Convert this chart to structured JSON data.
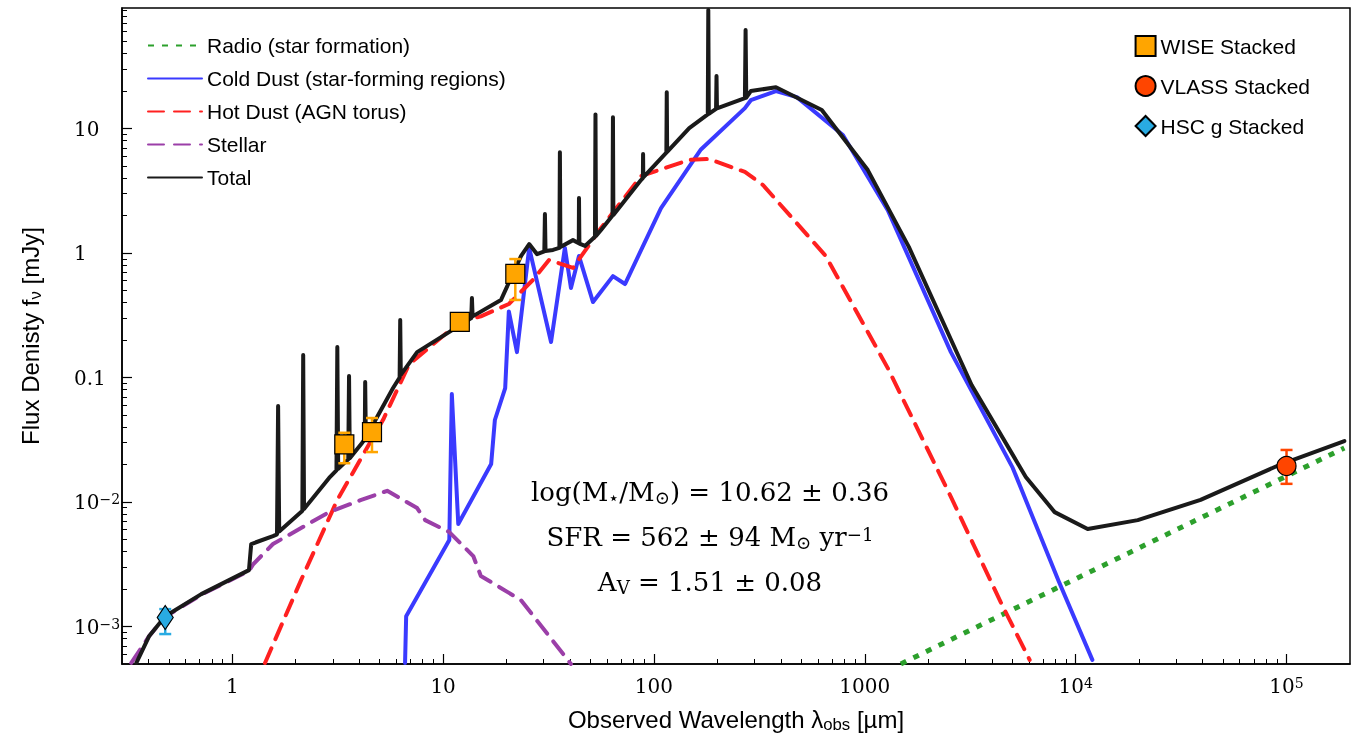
{
  "chart_data": {
    "type": "line",
    "xlabel": "Observed Wavelength λ$_{obs}$ [µm]",
    "ylabel": "Flux Denisty f$_{ν}$ [mJy]",
    "log": "xy",
    "xlim": [
      0.3,
      200000
    ],
    "ylim": [
      0.0005,
      93
    ],
    "xticks": [
      1,
      10,
      100,
      1000,
      {
        "value": 10000,
        "label": "10$^{4}$"
      },
      {
        "value": 100000,
        "label": "10$^{5}$"
      }
    ],
    "yticks": [
      {
        "value": 0.001,
        "label": "10$^{−3}$"
      },
      {
        "value": 0.01,
        "label": "10$^{−2}$"
      },
      0.1,
      1,
      10
    ],
    "grid": false,
    "legend": "top",
    "annotations": [
      "log(M$_{⋆}$/M$_{⊙}$) = 10.62 ± 0.36",
      "SFR = 562 ± 94 M$_{⊙}$ yr$^{−1}$",
      "A$_{V}$ = 1.51 ± 0.08"
    ],
    "series": [
      {
        "type": "line",
        "name": "Radio (star formation)",
        "color": "#2ca02c",
        "line_style": "dotted",
        "marker": "none",
        "x": [
          1482,
          188000
        ],
        "values": [
          0.0005,
          0.0272
        ]
      },
      {
        "type": "line",
        "name": "Cold Dust (star-forming regions)",
        "color": "#3a3aff",
        "line_style": "solid",
        "marker": "none",
        "x": [
          6.6,
          6.68,
          10.7,
          11.0,
          11.8,
          16.9,
          17.6,
          19.7,
          20.5,
          22.4,
          25.6,
          32.5,
          37.8,
          40.4,
          44.1,
          51.4,
          63.9,
          72.9,
          108,
          167,
          270,
          288,
          379,
          476,
          787,
          1285,
          2560,
          5030,
          8300,
          12000
        ],
        "values": [
          0.00051,
          0.00121,
          0.00495,
          0.0737,
          0.00666,
          0.0202,
          0.0456,
          0.0824,
          0.34,
          0.16,
          1.1,
          0.193,
          1.1,
          0.524,
          0.946,
          0.404,
          0.653,
          0.564,
          2.3,
          6.8,
          14.6,
          16.9,
          20.0,
          17.9,
          8.87,
          2.21,
          0.16,
          0.0188,
          0.00232,
          0.00054
        ]
      },
      {
        "type": "line",
        "name": "Hot Dust (AGN torus)",
        "color": "#ff2020",
        "line_style": "dashed",
        "marker": "none",
        "x": [
          1.43,
          2.12,
          3.15,
          5.2,
          6.9,
          12,
          15.1,
          20.5,
          26.7,
          31.8,
          41.3,
          56.1,
          86.8,
          147,
          182,
          270,
          329,
          653,
          1285,
          2560,
          4410,
          6050
        ],
        "values": [
          0.00051,
          0.00236,
          0.0104,
          0.046,
          0.128,
          0.28,
          0.31,
          0.39,
          0.61,
          0.88,
          0.76,
          1.59,
          4.15,
          5.6,
          5.7,
          4.48,
          3.52,
          0.946,
          0.119,
          0.011,
          0.00157,
          0.00054
        ]
      },
      {
        "type": "line",
        "name": "Stellar",
        "color": "#9b3fa8",
        "line_style": "dashed",
        "marker": "none",
        "x": [
          0.332,
          0.404,
          0.481,
          0.713,
          1.2,
          1.26,
          1.56,
          2.12,
          2.88,
          4.09,
          5.43,
          7.53,
          8.22,
          10.7,
          13.9,
          15.1,
          23.4,
          40.4
        ],
        "values": [
          0.00051,
          0.00084,
          0.0012,
          0.0018,
          0.0028,
          0.00318,
          0.0046,
          0.00618,
          0.0083,
          0.0104,
          0.0123,
          0.00895,
          0.00716,
          0.00574,
          0.00368,
          0.00255,
          0.00163,
          0.0005
        ]
      },
      {
        "type": "line",
        "name": "Total",
        "color": "#1a1a1a",
        "line_style": "solid",
        "marker": "none",
        "x": [
          0.351,
          0.404,
          0.481,
          0.713,
          1.2,
          1.23,
          1.56,
          1.63,
          1.65,
          1.67,
          2.12,
          2.15,
          2.17,
          2.19,
          2.88,
          3.12,
          3.15,
          3.18,
          3.55,
          3.58,
          3.61,
          4.09,
          4.25,
          4.27,
          4.3,
          5.79,
          6.22,
          6.26,
          6.3,
          7.53,
          12.7,
          13.6,
          13.7,
          13.8,
          18.8,
          23.4,
          25.6,
          27.9,
          30.2,
          30.4,
          30.6,
          33.2,
          35.6,
          35.8,
          36,
          41.3,
          44,
          44.1,
          44.3,
          47.1,
          52.5,
          52.8,
          53.1,
          56.1,
          63.6,
          63.9,
          64.2,
          86.8,
          88.6,
          88.8,
          89,
          114.5,
          115,
          115.5,
          147,
          180,
          181,
          182,
          197,
          198,
          199,
          270,
          272,
          274,
          288,
          379,
          625,
          1033,
          1617,
          3210,
          5800,
          7950,
          11400,
          19700,
          39100,
          94700,
          188000
        ],
        "values": [
          0.00051,
          0.00084,
          0.00121,
          0.00182,
          0.00284,
          0.0046,
          0.00533,
          0.0055,
          0.059,
          0.0058,
          0.0083,
          0.0085,
          0.152,
          0.0088,
          0.0156,
          0.018,
          0.176,
          0.0185,
          0.022,
          0.103,
          0.0225,
          0.0292,
          0.032,
          0.092,
          0.033,
          0.0824,
          0.1,
          0.29,
          0.105,
          0.16,
          0.279,
          0.3,
          0.435,
          0.31,
          0.419,
          0.946,
          1.18,
          0.98,
          1.03,
          2.06,
          1.04,
          1.06,
          1.1,
          6.45,
          1.12,
          1.27,
          1.2,
          2.77,
          1.19,
          1.14,
          1.35,
          13.0,
          1.37,
          1.53,
          2.0,
          12.3,
          2.02,
          3.86,
          4.0,
          6.25,
          4.05,
          6.4,
          19.6,
          6.5,
          10.1,
          13,
          89.5,
          13.1,
          14.4,
          26.4,
          14.5,
          17.6,
          62,
          17.7,
          20.0,
          21.5,
          14.1,
          4.64,
          1.12,
          0.0871,
          0.0159,
          0.0083,
          0.00607,
          0.00716,
          0.0104,
          0.0202,
          0.0309
        ]
      },
      {
        "type": "scatter",
        "name": "WISE Stacked",
        "color": "#ffa500",
        "marker": "square",
        "x": [
          3.4,
          4.6,
          12,
          22
        ],
        "values": [
          0.029,
          0.0365,
          0.28,
          0.68
        ],
        "errors": [
          [
            0.0205,
            0.036
          ],
          [
            0.0252,
            0.0473
          ],
          null,
          [
            0.42,
            0.895
          ]
        ]
      },
      {
        "type": "scatter",
        "name": "VLASS Stacked",
        "color": "#ff4500",
        "marker": "circle",
        "x": [
          100000
        ],
        "values": [
          0.0195
        ],
        "errors": [
          [
            0.014,
            0.0262
          ]
        ]
      },
      {
        "type": "scatter",
        "name": "HSC g Stacked",
        "color": "#29abe2",
        "marker": "diamond",
        "x": [
          0.481
        ],
        "values": [
          0.00118
        ],
        "errors": [
          [
            0.00087,
            0.00138
          ]
        ]
      }
    ]
  }
}
